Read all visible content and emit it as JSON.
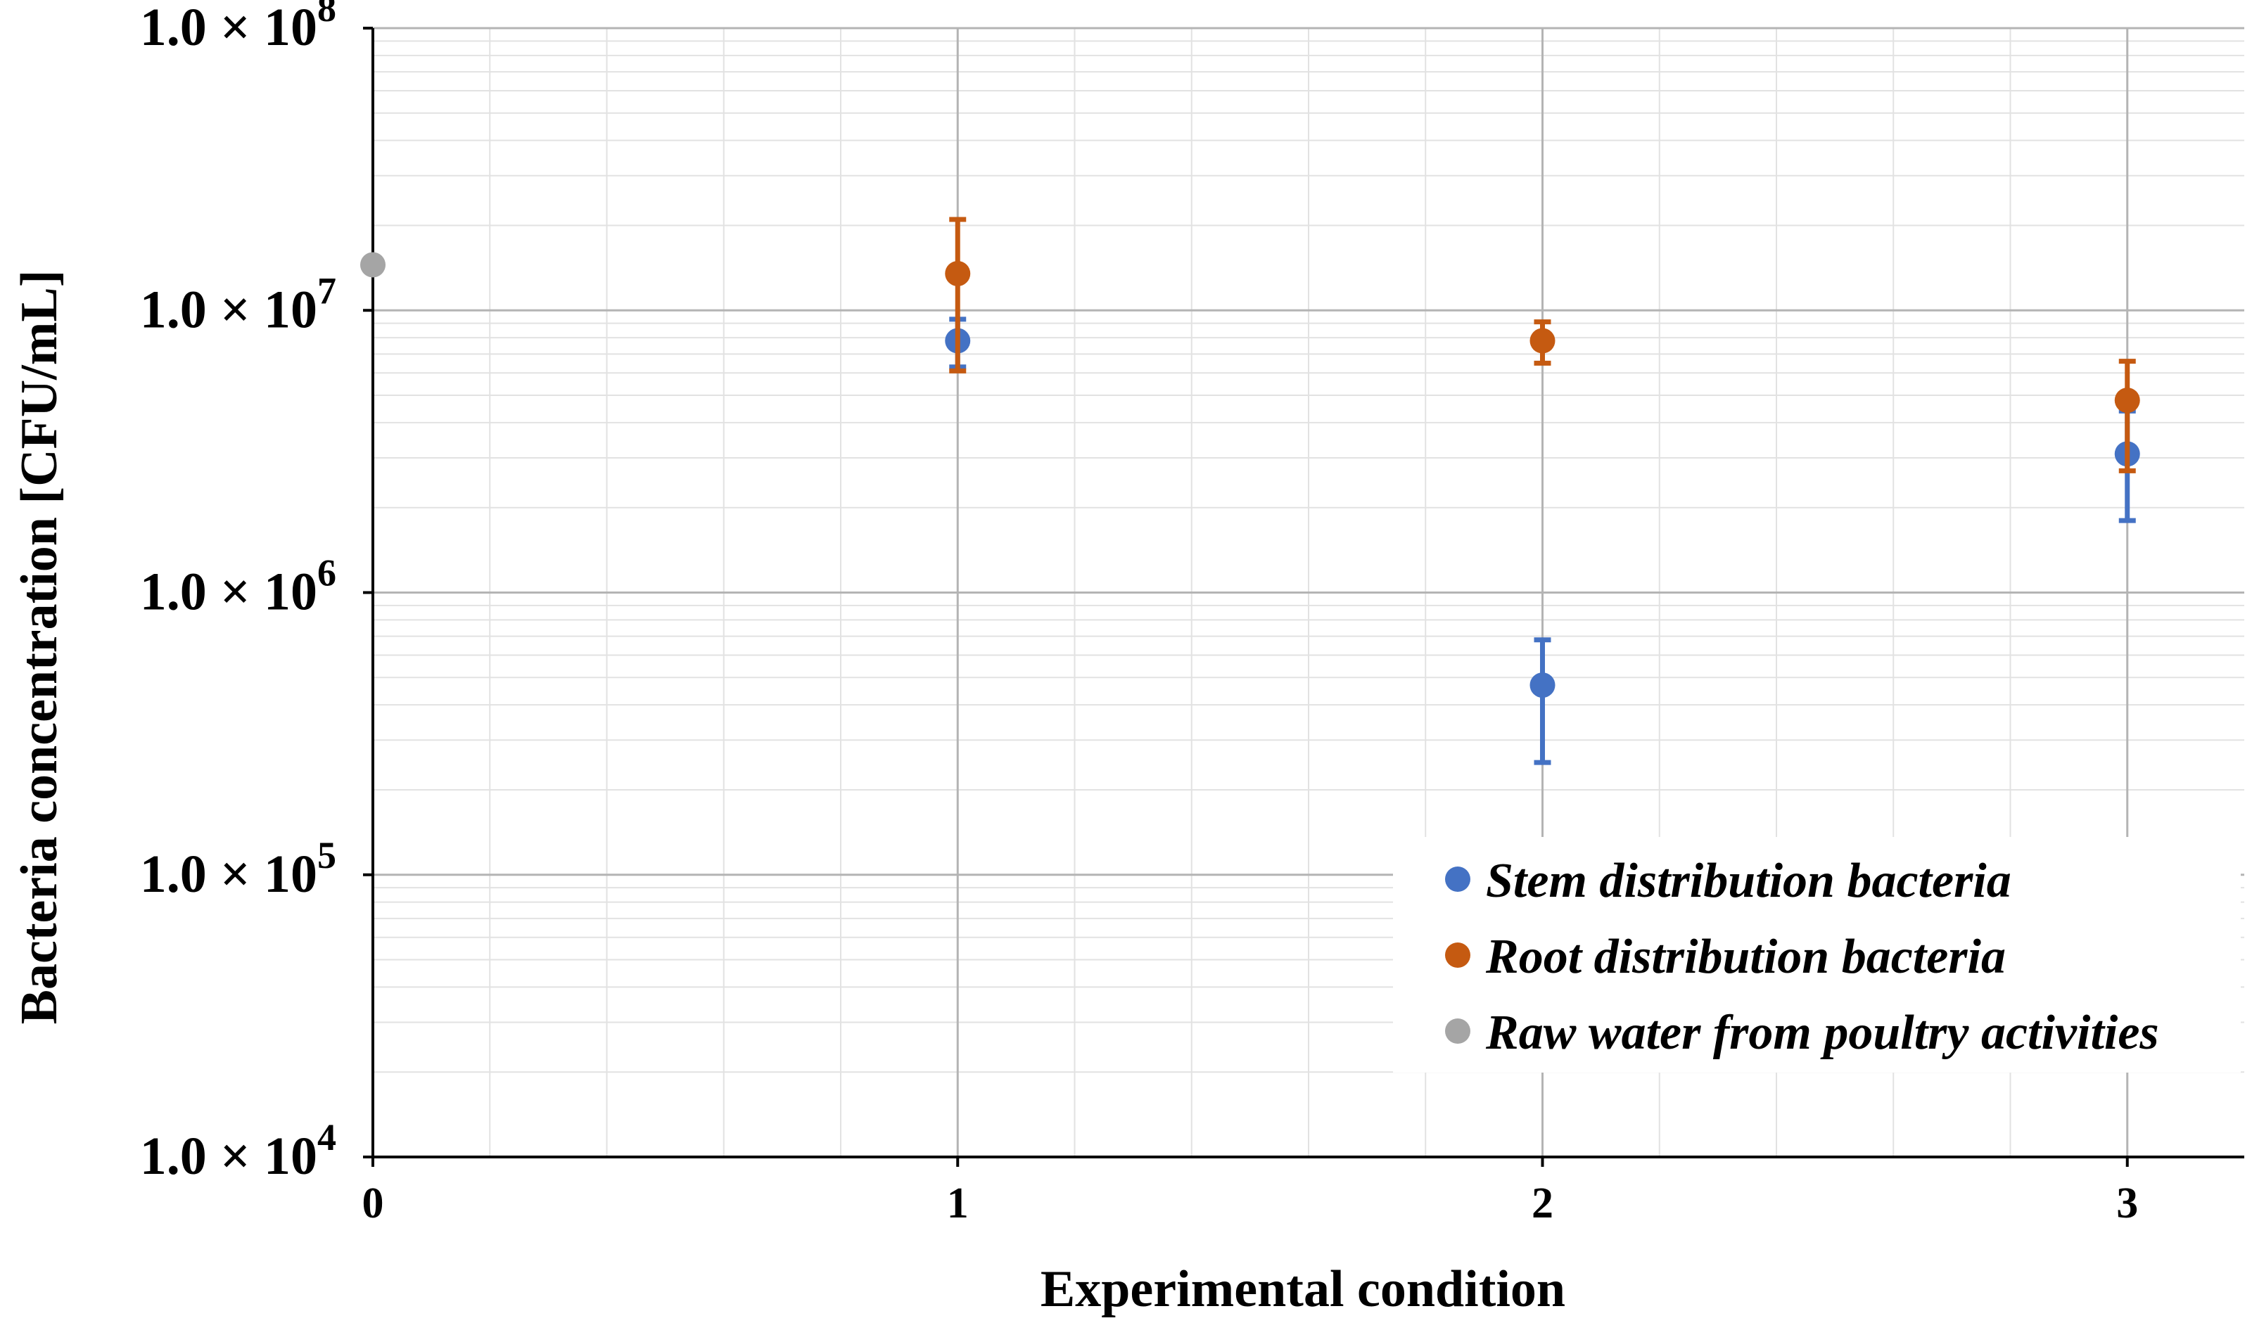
{
  "chart_data": {
    "type": "scatter",
    "title": "",
    "xlabel": "Experimental condition",
    "ylabel": "Bacteria concentration [CFU/mL]",
    "xlim": [
      0,
      3.2
    ],
    "ylim": [
      10000,
      100000000
    ],
    "yscale": "log",
    "grid": true,
    "x_ticks": [
      {
        "value": 0,
        "label": "0"
      },
      {
        "value": 1,
        "label": "1"
      },
      {
        "value": 2,
        "label": "2"
      },
      {
        "value": 3,
        "label": "3"
      }
    ],
    "y_ticks": [
      {
        "value": 100000000,
        "mantissa": "1.0 × 10",
        "exponent": "8"
      },
      {
        "value": 10000000,
        "mantissa": "1.0 × 10",
        "exponent": "7"
      },
      {
        "value": 1000000,
        "mantissa": "1.0 × 10",
        "exponent": "6"
      },
      {
        "value": 100000,
        "mantissa": "1.0 × 10",
        "exponent": "5"
      },
      {
        "value": 10000,
        "mantissa": "1.0 × 10",
        "exponent": "4"
      }
    ],
    "legend_position": "bottom-right",
    "series": [
      {
        "name": "Stem distribution bacteria",
        "color": "#4472C4",
        "points": [
          {
            "x": 1,
            "y": 7800000,
            "err_low": 6300000,
            "err_high": 9300000
          },
          {
            "x": 2,
            "y": 470000,
            "err_low": 250000,
            "err_high": 680000
          },
          {
            "x": 3,
            "y": 3100000,
            "err_low": 1800000,
            "err_high": 4400000
          }
        ]
      },
      {
        "name": "Root distribution bacteria",
        "color": "#C55A11",
        "points": [
          {
            "x": 1,
            "y": 13500000,
            "err_low": 6100000,
            "err_high": 21000000
          },
          {
            "x": 2,
            "y": 7800000,
            "err_low": 6500000,
            "err_high": 9100000
          },
          {
            "x": 3,
            "y": 4800000,
            "err_low": 2700000,
            "err_high": 6600000
          }
        ]
      },
      {
        "name": "Raw water from poultry activities",
        "color": "#A5A5A5",
        "points": [
          {
            "x": 0,
            "y": 14500000
          }
        ]
      }
    ]
  }
}
